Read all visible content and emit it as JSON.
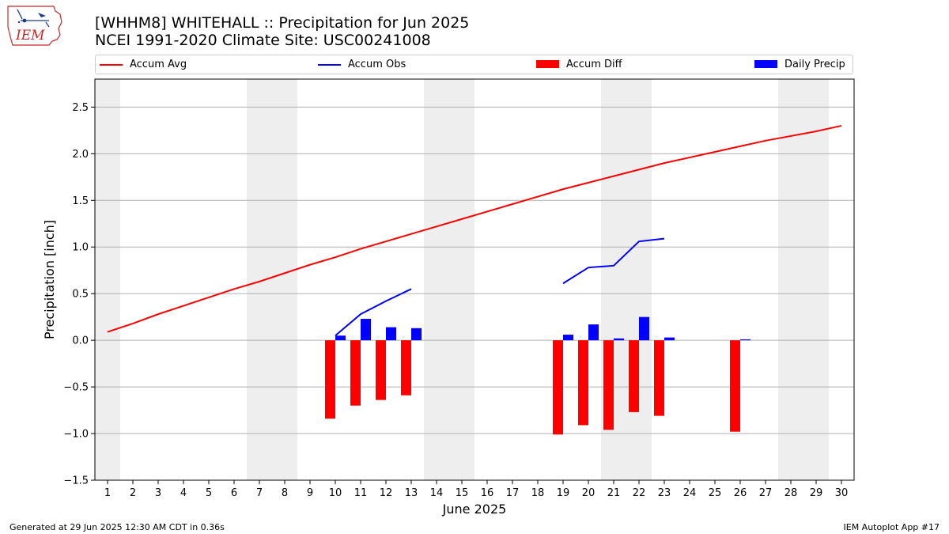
{
  "title_line1": "[WHHM8] WHITEHALL :: Precipitation for Jun 2025",
  "title_line2": "NCEI 1991-2020 Climate Site: USC00241008",
  "logo_text": "IEM",
  "footer_left": "Generated at 29 Jun 2025 12:30 AM CDT in 0.36s",
  "footer_right": "IEM Autoplot App #17",
  "colors": {
    "accum_avg": "#ff0000",
    "accum_obs": "#0000ff",
    "accum_diff": "#ff0000",
    "daily_precip": "#0000ff",
    "weekend_shade": "#eeeeee",
    "grid": "#b0b0b0"
  },
  "chart_data": {
    "type": "bar",
    "xlabel": "June 2025",
    "ylabel": "Precipitation [inch]",
    "ylim": [
      -1.5,
      2.8
    ],
    "xlim": [
      0.5,
      30.5
    ],
    "yticks": [
      -1.5,
      -1.0,
      -0.5,
      0.0,
      0.5,
      1.0,
      1.5,
      2.0,
      2.5
    ],
    "ytick_labels": [
      "−1.5",
      "−1.0",
      "−0.5",
      "0.0",
      "0.5",
      "1.0",
      "1.5",
      "2.0",
      "2.5"
    ],
    "xticks": [
      1,
      2,
      3,
      4,
      5,
      6,
      7,
      8,
      9,
      10,
      11,
      12,
      13,
      14,
      15,
      16,
      17,
      18,
      19,
      20,
      21,
      22,
      23,
      24,
      25,
      26,
      27,
      28,
      29,
      30
    ],
    "grid": "horizontal",
    "legend_position": "top",
    "shaded_days": [
      1,
      7,
      8,
      14,
      15,
      21,
      22,
      28,
      29
    ],
    "series": [
      {
        "name": "Accum Avg",
        "kind": "line",
        "x": [
          1,
          2,
          3,
          4,
          5,
          6,
          7,
          8,
          9,
          10,
          11,
          12,
          13,
          14,
          15,
          16,
          17,
          18,
          19,
          20,
          21,
          22,
          23,
          24,
          25,
          26,
          27,
          28,
          29,
          30
        ],
        "values": [
          0.09,
          0.18,
          0.28,
          0.37,
          0.46,
          0.55,
          0.63,
          0.72,
          0.81,
          0.89,
          0.98,
          1.06,
          1.14,
          1.22,
          1.3,
          1.38,
          1.46,
          1.54,
          1.62,
          1.69,
          1.76,
          1.83,
          1.9,
          1.96,
          2.02,
          2.08,
          2.14,
          2.19,
          2.24,
          2.3
        ]
      },
      {
        "name": "Accum Obs",
        "kind": "line",
        "segments": [
          {
            "x": [
              10,
              11,
              12,
              13
            ],
            "values": [
              0.05,
              0.28,
              0.42,
              0.55
            ]
          },
          {
            "x": [
              19,
              20,
              21,
              22,
              23
            ],
            "values": [
              0.61,
              0.78,
              0.8,
              1.06,
              1.09
            ]
          }
        ]
      },
      {
        "name": "Accum Diff",
        "kind": "bar",
        "x": [
          10,
          11,
          12,
          13,
          19,
          20,
          21,
          22,
          23,
          26
        ],
        "values": [
          -0.84,
          -0.7,
          -0.64,
          -0.59,
          -1.01,
          -0.91,
          -0.96,
          -0.77,
          -0.81,
          -0.98
        ]
      },
      {
        "name": "Daily Precip",
        "kind": "bar",
        "x": [
          10,
          11,
          12,
          13,
          19,
          20,
          21,
          22,
          23,
          26
        ],
        "values": [
          0.05,
          0.23,
          0.14,
          0.13,
          0.06,
          0.17,
          0.02,
          0.25,
          0.03,
          0.01
        ]
      }
    ]
  }
}
